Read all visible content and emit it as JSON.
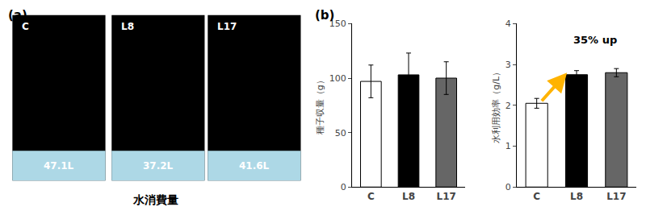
{
  "chart_data": [
    {
      "type": "photo_panel",
      "title": "(a)",
      "categories": [
        "C",
        "L8",
        "L17"
      ],
      "values": [
        47.1,
        37.2,
        41.6
      ],
      "value_labels": [
        "47.1L",
        "37.2L",
        "41.6L"
      ],
      "data_labels": true,
      "xlabel": "水消費量",
      "color": "#add8e6"
    },
    {
      "type": "bar",
      "title": "(b)",
      "categories": [
        "C",
        "L8",
        "L17"
      ],
      "values": [
        97,
        103,
        100
      ],
      "errors": [
        15,
        20,
        15
      ],
      "colors": [
        "white",
        "black",
        "#666666"
      ],
      "ylabel": "種子収量（g）",
      "ylim": [
        0,
        150
      ],
      "yticks": [
        0,
        50,
        100,
        150
      ],
      "grid": false
    },
    {
      "type": "bar",
      "categories": [
        "C",
        "L8",
        "L17"
      ],
      "values": [
        2.05,
        2.75,
        2.8
      ],
      "errors": [
        0.12,
        0.1,
        0.1
      ],
      "colors": [
        "white",
        "black",
        "#666666"
      ],
      "ylabel": "水利用効率（g/L）",
      "ylim": [
        0,
        4
      ],
      "yticks": [
        0,
        1,
        2,
        3,
        4
      ],
      "grid": false,
      "annotations": [
        "35% up"
      ]
    }
  ]
}
